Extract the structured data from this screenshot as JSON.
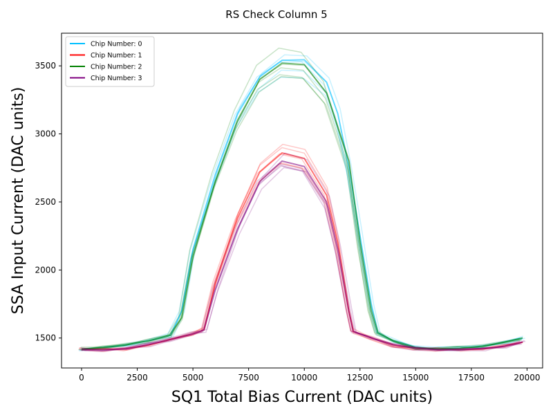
{
  "chart_data": {
    "type": "line",
    "title": "RS Check Column 5",
    "xlabel": "SQ1 Total Bias Current (DAC units)",
    "ylabel": "SSA Input Current (DAC units)",
    "xlim": [
      -900,
      20700
    ],
    "ylim": [
      1280,
      3740
    ],
    "xticks": [
      0,
      2500,
      5000,
      7500,
      10000,
      12500,
      15000,
      17500,
      20000
    ],
    "yticks": [
      1500,
      2000,
      2500,
      3000,
      3500
    ],
    "grid": false,
    "legend_position": "top-left",
    "colors": {
      "chip0": "#00bfff",
      "chip1": "#ff0000",
      "chip2": "#008000",
      "chip3": "#800080"
    },
    "series": [
      {
        "name": "Chip Number: 0",
        "color": "#00bfff",
        "x": [
          0,
          1000,
          2000,
          3000,
          4000,
          4500,
          5000,
          6000,
          7000,
          8000,
          9000,
          10000,
          11000,
          11500,
          12000,
          12500,
          13000,
          13300,
          14000,
          15000,
          16000,
          17000,
          18000,
          19000,
          19800
        ],
        "y": [
          1420,
          1430,
          1450,
          1480,
          1520,
          1700,
          2150,
          2700,
          3150,
          3420,
          3540,
          3545,
          3380,
          3150,
          2750,
          2250,
          1750,
          1540,
          1480,
          1430,
          1420,
          1425,
          1440,
          1470,
          1500
        ]
      },
      {
        "name": "Chip Number: 1",
        "color": "#ff0000",
        "x": [
          0,
          1000,
          2000,
          3000,
          4000,
          5000,
          5500,
          6000,
          7000,
          8000,
          9000,
          10000,
          11000,
          11500,
          12000,
          12200,
          13000,
          14000,
          15000,
          16000,
          17000,
          18000,
          19000,
          19800
        ],
        "y": [
          1415,
          1415,
          1420,
          1450,
          1490,
          1530,
          1560,
          1900,
          2380,
          2720,
          2860,
          2820,
          2550,
          2200,
          1700,
          1550,
          1500,
          1450,
          1425,
          1415,
          1415,
          1420,
          1440,
          1470
        ]
      },
      {
        "name": "Chip Number: 2",
        "color": "#008000",
        "x": [
          0,
          1000,
          2000,
          3000,
          4000,
          4500,
          5000,
          6000,
          7000,
          8000,
          9000,
          10000,
          11000,
          12000,
          12500,
          13000,
          13300,
          14000,
          15000,
          16000,
          17000,
          18000,
          19000,
          19800
        ],
        "y": [
          1420,
          1430,
          1450,
          1480,
          1520,
          1650,
          2100,
          2650,
          3100,
          3400,
          3520,
          3510,
          3300,
          2800,
          2200,
          1700,
          1540,
          1480,
          1430,
          1420,
          1425,
          1440,
          1470,
          1500
        ]
      },
      {
        "name": "Chip Number: 3",
        "color": "#800080",
        "x": [
          0,
          1000,
          2000,
          3000,
          4000,
          5000,
          5500,
          6000,
          7000,
          8000,
          9000,
          10000,
          11000,
          11500,
          12000,
          12200,
          13000,
          14000,
          15000,
          16000,
          17000,
          18000,
          19000,
          19800
        ],
        "y": [
          1415,
          1415,
          1420,
          1450,
          1490,
          1530,
          1560,
          1850,
          2300,
          2650,
          2800,
          2760,
          2500,
          2150,
          1700,
          1550,
          1500,
          1450,
          1425,
          1415,
          1415,
          1420,
          1440,
          1470
        ]
      }
    ]
  }
}
